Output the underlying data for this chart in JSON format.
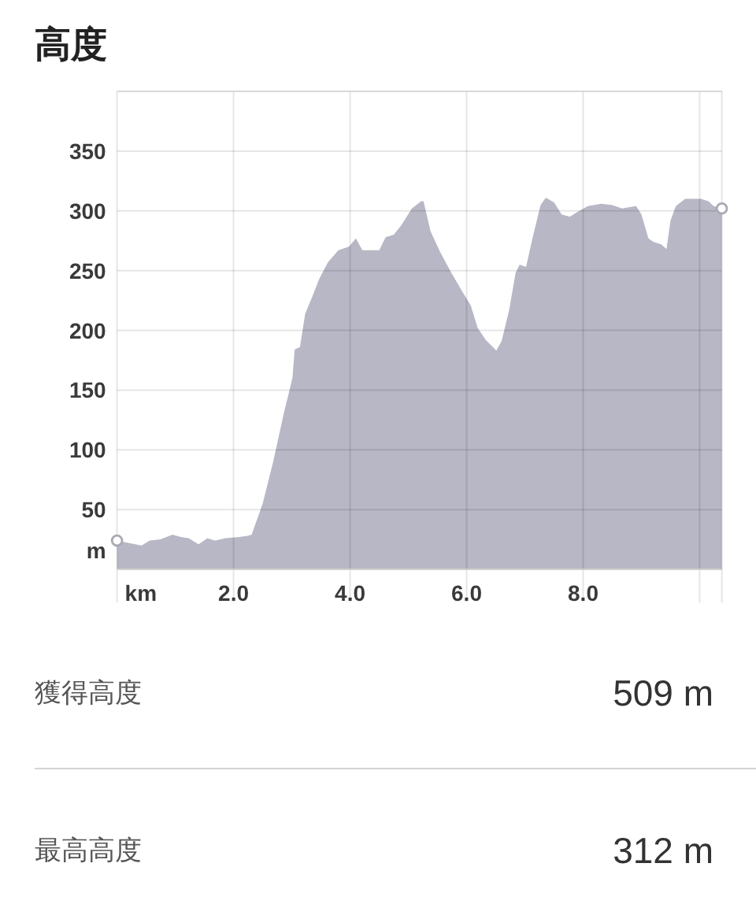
{
  "chart_data": {
    "type": "area",
    "title": "高度",
    "xlabel": "km",
    "ylabel": "m",
    "series": [
      {
        "color": "#b7b7c5",
        "x": [
          0,
          0.2,
          0.42,
          0.56,
          0.74,
          0.95,
          1.1,
          1.23,
          1.4,
          1.55,
          1.68,
          1.86,
          2.09,
          2.24,
          2.31,
          2.5,
          2.68,
          2.86,
          3.01,
          3.05,
          3.14,
          3.23,
          3.35,
          3.47,
          3.62,
          3.8,
          3.98,
          4.1,
          4.21,
          4.5,
          4.61,
          4.75,
          4.88,
          5.06,
          5.22,
          5.26,
          5.38,
          5.54,
          5.74,
          5.92,
          6.07,
          6.19,
          6.33,
          6.51,
          6.6,
          6.73,
          6.84,
          6.91,
          7.02,
          7.14,
          7.27,
          7.36,
          7.5,
          7.63,
          7.77,
          7.9,
          8.08,
          8.31,
          8.49,
          8.67,
          8.78,
          8.91,
          9.0,
          9.12,
          9.21,
          9.34,
          9.43,
          9.5,
          9.59,
          9.75,
          10.02,
          10.15,
          10.24,
          10.38
        ],
        "values": [
          24,
          22,
          20,
          24,
          25,
          29,
          27,
          26,
          21,
          26,
          24,
          26,
          27,
          28,
          29,
          55,
          90,
          130,
          160,
          184,
          186,
          214,
          228,
          243,
          257,
          267,
          270,
          277,
          267,
          267,
          278,
          280,
          288,
          302,
          308,
          308,
          283,
          266,
          248,
          233,
          221,
          202,
          192,
          183,
          191,
          217,
          248,
          255,
          253,
          279,
          305,
          311,
          307,
          297,
          295,
          299,
          304,
          306,
          305,
          302,
          303,
          304,
          297,
          277,
          274,
          272,
          268,
          292,
          304,
          310,
          310,
          308,
          304,
          302
        ]
      },
      {
        "type": "scatter",
        "color": "#a9a9b3",
        "marker": "circle",
        "x": [
          0,
          10.38
        ],
        "values": [
          24,
          302
        ]
      }
    ],
    "xlim": [
      0,
      10.38
    ],
    "ylim": [
      0,
      400
    ],
    "xticks": [
      {
        "value": 0,
        "label": null
      },
      {
        "value": 2,
        "label": "2.0"
      },
      {
        "value": 4,
        "label": "4.0"
      },
      {
        "value": 6,
        "label": "6.0"
      },
      {
        "value": 8,
        "label": "8.0"
      },
      {
        "value": 10,
        "label": null
      }
    ],
    "yticks": [
      50,
      100,
      150,
      200,
      250,
      300,
      350
    ],
    "grid": true,
    "annotations": [
      "獲得高度",
      "509 m",
      "最高高度",
      "312 m"
    ]
  }
}
